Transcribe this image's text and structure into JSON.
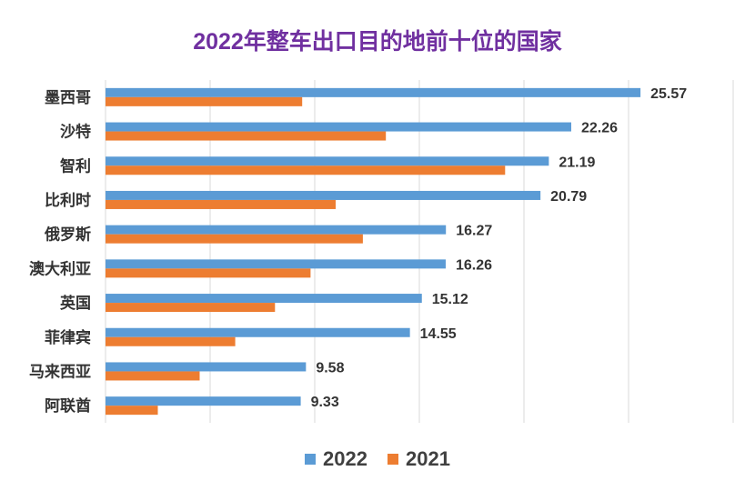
{
  "chart_data": {
    "type": "bar",
    "orientation": "horizontal",
    "title": "2022年整车出口目的地前十位的国家",
    "categories": [
      "墨西哥",
      "沙特",
      "智利",
      "比利时",
      "俄罗斯",
      "澳大利亚",
      "英国",
      "菲律宾",
      "马来西亚",
      "阿联酋"
    ],
    "series": [
      {
        "name": "2022",
        "color": "#5b9bd5",
        "values": [
          25.57,
          22.26,
          21.19,
          20.79,
          16.27,
          16.26,
          15.12,
          14.55,
          9.58,
          9.33
        ],
        "data_labels": [
          "25.57",
          "22.26",
          "21.19",
          "20.79",
          "16.27",
          "16.26",
          "15.12",
          "14.55",
          "9.58",
          "9.33"
        ]
      },
      {
        "name": "2021",
        "color": "#ed7d31",
        "values": [
          9.4,
          13.4,
          19.1,
          11.0,
          12.3,
          9.8,
          8.1,
          6.2,
          4.5,
          2.5
        ]
      }
    ],
    "xlim": [
      0,
      30
    ],
    "grid": true,
    "legend": "bottom"
  }
}
